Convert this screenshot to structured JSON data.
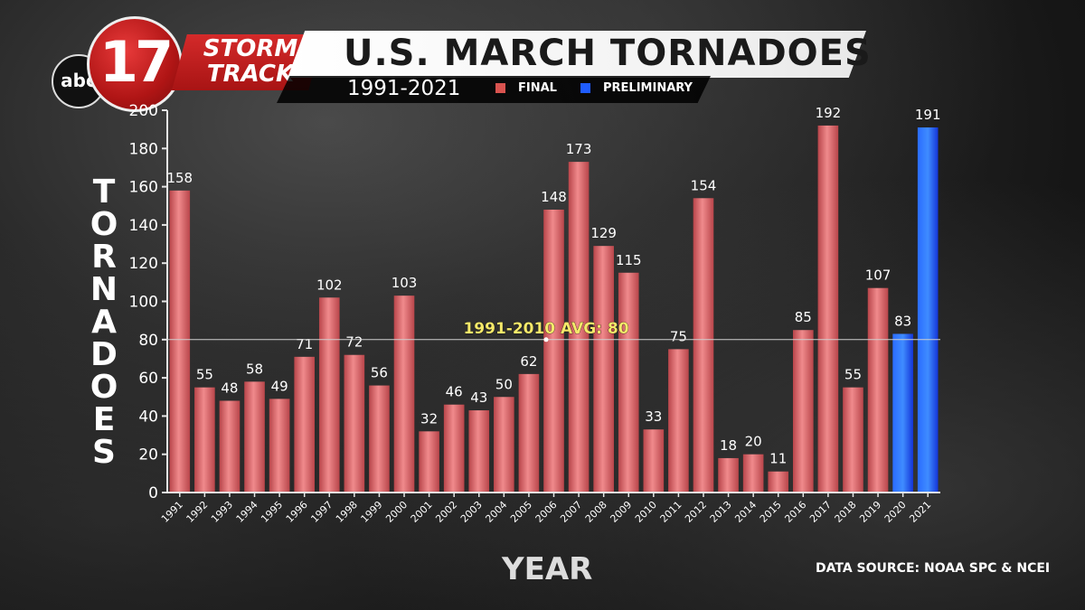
{
  "header": {
    "title": "U.S. MARCH TORNADOES",
    "subtitle": "1991-2021",
    "logo_network": "abc",
    "logo_channel": "17",
    "logo_brand_line1": "STORM",
    "logo_brand_line2": "TRACK"
  },
  "legend": [
    {
      "label": "FINAL",
      "color": "#d9534f"
    },
    {
      "label": "PRELIMINARY",
      "color": "#1f5cff"
    }
  ],
  "source": "DATA SOURCE: NOAA SPC & NCEI",
  "chart_data": {
    "type": "bar",
    "title": "U.S. MARCH TORNADOES",
    "subtitle": "1991-2021",
    "xlabel": "YEAR",
    "ylabel": "TORNADOES",
    "ylim": [
      0,
      200
    ],
    "yticks": [
      0,
      20,
      40,
      60,
      80,
      100,
      120,
      140,
      160,
      180,
      200
    ],
    "categories": [
      "1991",
      "1992",
      "1993",
      "1994",
      "1995",
      "1996",
      "1997",
      "1998",
      "1999",
      "2000",
      "2001",
      "2002",
      "2003",
      "2004",
      "2005",
      "2006",
      "2007",
      "2008",
      "2009",
      "2010",
      "2011",
      "2012",
      "2013",
      "2014",
      "2015",
      "2016",
      "2017",
      "2018",
      "2019",
      "2020",
      "2021"
    ],
    "values": [
      158,
      55,
      48,
      58,
      49,
      71,
      102,
      72,
      56,
      103,
      32,
      46,
      43,
      50,
      62,
      148,
      173,
      129,
      115,
      33,
      75,
      154,
      18,
      20,
      11,
      85,
      192,
      55,
      107,
      83,
      191
    ],
    "status": [
      "FINAL",
      "FINAL",
      "FINAL",
      "FINAL",
      "FINAL",
      "FINAL",
      "FINAL",
      "FINAL",
      "FINAL",
      "FINAL",
      "FINAL",
      "FINAL",
      "FINAL",
      "FINAL",
      "FINAL",
      "FINAL",
      "FINAL",
      "FINAL",
      "FINAL",
      "FINAL",
      "FINAL",
      "FINAL",
      "FINAL",
      "FINAL",
      "FINAL",
      "FINAL",
      "FINAL",
      "FINAL",
      "FINAL",
      "PRELIMINARY",
      "PRELIMINARY"
    ],
    "average": {
      "value": 80,
      "label": "1991-2010 AVG: 80"
    },
    "grid": false,
    "legend_position": "top"
  }
}
